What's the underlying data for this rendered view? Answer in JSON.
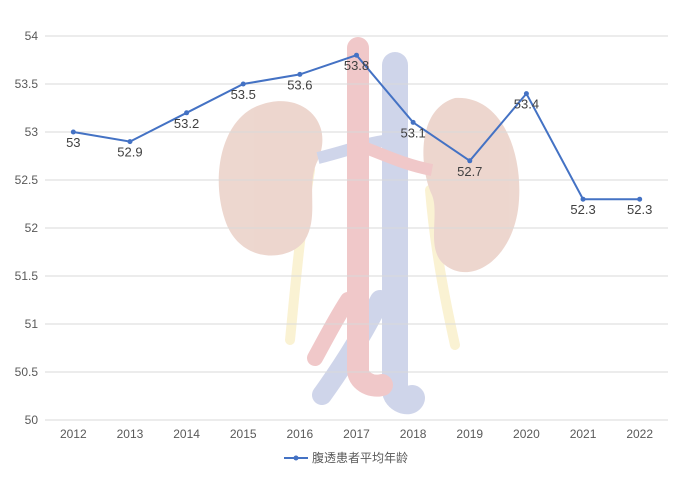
{
  "chart_data": {
    "type": "line",
    "title": "",
    "xlabel": "",
    "ylabel": "",
    "categories": [
      "2012",
      "2013",
      "2014",
      "2015",
      "2016",
      "2017",
      "2018",
      "2019",
      "2020",
      "2021",
      "2022"
    ],
    "series": [
      {
        "name": "腹透患者平均年龄",
        "values": [
          53,
          52.9,
          53.2,
          53.5,
          53.6,
          53.8,
          53.1,
          52.7,
          53.4,
          52.3,
          52.3
        ],
        "labels": [
          "53",
          "52.9",
          "53.2",
          "53.5",
          "53.6",
          "53.8",
          "53.1",
          "52.7",
          "53.4",
          "52.3",
          "52.3"
        ]
      }
    ],
    "ylim": [
      50,
      54
    ],
    "yticks": [
      "50",
      "50.5",
      "51",
      "51.5",
      "52",
      "52.5",
      "53",
      "53.5",
      "54"
    ],
    "grid": true,
    "legend_position": "bottom"
  },
  "colors": {
    "series": "#4472c4",
    "grid": "#d9d9d9",
    "background_artwork": "kidneys-illustration"
  }
}
